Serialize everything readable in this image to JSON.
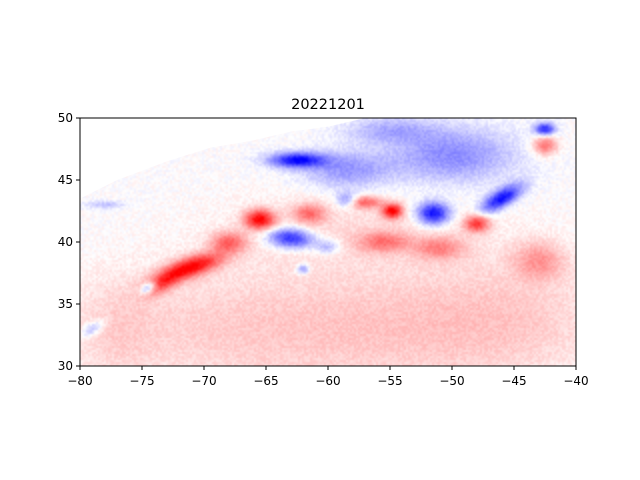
{
  "chart_data": {
    "type": "heatmap",
    "title": "20221201",
    "xlabel": "",
    "ylabel": "",
    "xlim": [
      -80,
      -40
    ],
    "ylim": [
      30,
      50
    ],
    "xticks": [
      -80,
      -75,
      -70,
      -65,
      -60,
      -55,
      -50,
      -45,
      -40
    ],
    "yticks": [
      30,
      35,
      40,
      45,
      50
    ],
    "xtick_labels": [
      "−80",
      "−75",
      "−70",
      "−65",
      "−60",
      "−55",
      "−50",
      "−45",
      "−40"
    ],
    "ytick_labels": [
      "30",
      "35",
      "40",
      "45",
      "50"
    ],
    "colormap": "bwr",
    "colors": {
      "negative": "#0000ff",
      "zero": "#ffffff",
      "positive": "#ff0000"
    },
    "value_range": [
      -1,
      1
    ],
    "grid": false,
    "background_field": [
      {
        "lon": -70,
        "lat": 33,
        "value": 0.15,
        "slon": 12,
        "slat": 5
      },
      {
        "lon": -55,
        "lat": 33,
        "value": 0.18,
        "slon": 12,
        "slat": 5
      },
      {
        "lon": -45,
        "lat": 34,
        "value": 0.14,
        "slon": 8,
        "slat": 5
      },
      {
        "lon": -58,
        "lat": 41,
        "value": 0.12,
        "slon": 10,
        "slat": 3
      },
      {
        "lon": -77,
        "lat": 33,
        "value": 0.1,
        "slon": 3,
        "slat": 4
      }
    ],
    "features": [
      {
        "lon": -71.0,
        "lat": 38.0,
        "value": 0.95,
        "slon": 2.6,
        "slat": 0.8,
        "rot": 18
      },
      {
        "lon": -73.5,
        "lat": 36.6,
        "value": 0.55,
        "slon": 1.6,
        "slat": 0.7,
        "rot": 25
      },
      {
        "lon": -65.5,
        "lat": 41.8,
        "value": 0.95,
        "slon": 1.2,
        "slat": 0.8,
        "rot": 0
      },
      {
        "lon": -61.5,
        "lat": 42.3,
        "value": 0.5,
        "slon": 1.3,
        "slat": 0.8,
        "rot": 0
      },
      {
        "lon": -68.0,
        "lat": 40.0,
        "value": 0.55,
        "slon": 1.4,
        "slat": 0.8,
        "rot": 0
      },
      {
        "lon": -57.0,
        "lat": 43.2,
        "value": 0.55,
        "slon": 1.3,
        "slat": 0.5,
        "rot": 0
      },
      {
        "lon": -54.8,
        "lat": 42.5,
        "value": 0.95,
        "slon": 0.8,
        "slat": 0.6,
        "rot": 0
      },
      {
        "lon": -55.5,
        "lat": 40.0,
        "value": 0.45,
        "slon": 2.0,
        "slat": 0.8,
        "rot": 0
      },
      {
        "lon": -48.0,
        "lat": 41.5,
        "value": 0.75,
        "slon": 1.0,
        "slat": 0.7,
        "rot": 0
      },
      {
        "lon": -51.0,
        "lat": 39.5,
        "value": 0.4,
        "slon": 2.0,
        "slat": 0.9,
        "rot": 0
      },
      {
        "lon": -43.0,
        "lat": 38.5,
        "value": 0.35,
        "slon": 2.0,
        "slat": 1.5,
        "rot": 0
      },
      {
        "lon": -42.5,
        "lat": 47.8,
        "value": 0.55,
        "slon": 1.0,
        "slat": 0.8,
        "rot": 0
      },
      {
        "lon": -63.0,
        "lat": 40.3,
        "value": -0.9,
        "slon": 1.8,
        "slat": 0.8,
        "rot": -5
      },
      {
        "lon": -60.0,
        "lat": 39.6,
        "value": -0.35,
        "slon": 1.0,
        "slat": 0.6,
        "rot": 0
      },
      {
        "lon": -51.5,
        "lat": 42.3,
        "value": -1.0,
        "slon": 1.3,
        "slat": 0.9,
        "rot": 0
      },
      {
        "lon": -46.0,
        "lat": 43.5,
        "value": -0.95,
        "slon": 1.8,
        "slat": 0.7,
        "rot": 30
      },
      {
        "lon": -62.5,
        "lat": 46.6,
        "value": -0.95,
        "slon": 2.2,
        "slat": 0.6,
        "rot": 0
      },
      {
        "lon": -58.5,
        "lat": 45.8,
        "value": -0.4,
        "slon": 3.5,
        "slat": 1.5,
        "rot": 0
      },
      {
        "lon": -50.0,
        "lat": 47.0,
        "value": -0.45,
        "slon": 5.0,
        "slat": 2.2,
        "rot": 0
      },
      {
        "lon": -55.0,
        "lat": 49.0,
        "value": -0.3,
        "slon": 3.5,
        "slat": 1.0,
        "rot": 0
      },
      {
        "lon": -42.5,
        "lat": 49.1,
        "value": -0.85,
        "slon": 0.8,
        "slat": 0.5,
        "rot": 0
      },
      {
        "lon": -58.5,
        "lat": 43.4,
        "value": -0.45,
        "slon": 0.8,
        "slat": 0.6,
        "rot": 0
      },
      {
        "lon": -74.5,
        "lat": 36.3,
        "value": -0.7,
        "slon": 0.7,
        "slat": 0.4,
        "rot": 30
      },
      {
        "lon": -79.0,
        "lat": 33.0,
        "value": -0.35,
        "slon": 1.0,
        "slat": 0.5,
        "rot": 30
      },
      {
        "lon": -78.0,
        "lat": 43.0,
        "value": -0.25,
        "slon": 1.5,
        "slat": 0.3,
        "rot": 0
      },
      {
        "lon": -62.0,
        "lat": 37.8,
        "value": -0.45,
        "slon": 0.5,
        "slat": 0.4,
        "rot": 0
      }
    ],
    "land_mask": [
      [
        -80,
        43.5
      ],
      [
        -77,
        45
      ],
      [
        -73,
        46.5
      ],
      [
        -69.5,
        47.6
      ],
      [
        -66,
        48.2
      ],
      [
        -63,
        48.9
      ],
      [
        -60,
        49.3
      ],
      [
        -57,
        50
      ],
      [
        -80,
        50
      ]
    ]
  }
}
